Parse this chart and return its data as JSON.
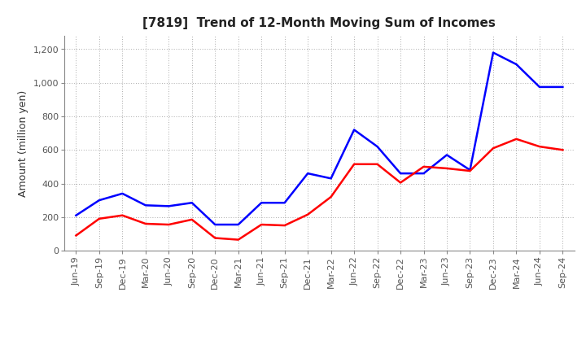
{
  "title": "[7819]  Trend of 12-Month Moving Sum of Incomes",
  "ylabel": "Amount (million yen)",
  "x_labels": [
    "Jun-19",
    "Sep-19",
    "Dec-19",
    "Mar-20",
    "Jun-20",
    "Sep-20",
    "Dec-20",
    "Mar-21",
    "Jun-21",
    "Sep-21",
    "Dec-21",
    "Mar-22",
    "Jun-22",
    "Sep-22",
    "Dec-22",
    "Mar-23",
    "Jun-23",
    "Sep-23",
    "Dec-23",
    "Mar-24",
    "Jun-24",
    "Sep-24"
  ],
  "ordinary_income": [
    210,
    300,
    340,
    270,
    265,
    285,
    155,
    155,
    285,
    285,
    460,
    430,
    720,
    620,
    460,
    460,
    570,
    480,
    1180,
    1110,
    975,
    975
  ],
  "net_income": [
    90,
    190,
    210,
    160,
    155,
    185,
    75,
    65,
    155,
    150,
    215,
    320,
    515,
    515,
    405,
    500,
    490,
    475,
    610,
    665,
    620,
    600
  ],
  "ordinary_color": "#0000FF",
  "net_color": "#FF0000",
  "ylim_min": 0,
  "ylim_max": 1280,
  "yticks": [
    0,
    200,
    400,
    600,
    800,
    1000,
    1200
  ],
  "ytick_labels": [
    "0",
    "200",
    "400",
    "600",
    "800",
    "1,000",
    "1,200"
  ],
  "background_color": "#FFFFFF",
  "grid_color": "#AAAAAA",
  "title_fontsize": 11,
  "axis_fontsize": 9,
  "tick_fontsize": 8,
  "legend_fontsize": 9,
  "line_width": 1.8
}
